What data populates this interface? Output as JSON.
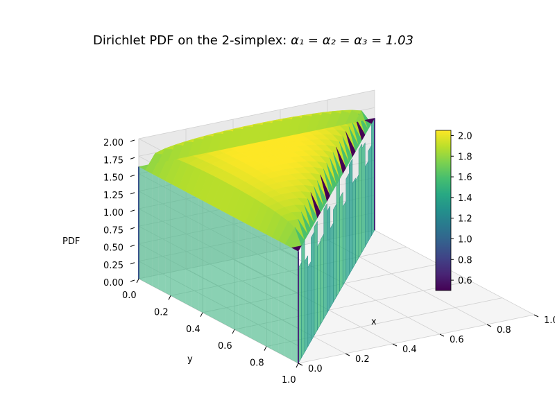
{
  "chart_data": {
    "type": "surface3d",
    "title": "Dirichlet PDF on the 2-simplex: α₁ = α₂ = α₃ = 1.03",
    "title_plain": "Dirichlet PDF on the 2-simplex: ",
    "title_math": "α₁ = α₂ = α₃ = 1.03",
    "alpha": [
      1.03,
      1.03,
      1.03
    ],
    "xlabel": "x",
    "ylabel": "y",
    "zlabel": "PDF",
    "xlim": [
      0.0,
      1.0
    ],
    "ylim": [
      0.0,
      1.0
    ],
    "zlim": [
      0.0,
      2.0
    ],
    "x_ticks": [
      "0.0",
      "0.2",
      "0.4",
      "0.6",
      "0.8",
      "1.0"
    ],
    "y_ticks": [
      "0.0",
      "0.2",
      "0.4",
      "0.6",
      "0.8",
      "1.0"
    ],
    "z_ticks": [
      "0.00",
      "0.25",
      "0.50",
      "0.75",
      "1.00",
      "1.25",
      "1.50",
      "1.75",
      "2.00"
    ],
    "colorbar": {
      "colormap": "viridis",
      "range": [
        0.5,
        2.05
      ],
      "ticks": [
        "0.6",
        "0.8",
        "1.0",
        "1.2",
        "1.4",
        "1.6",
        "1.8",
        "2.0"
      ]
    },
    "surface": {
      "peak_pdf": 2.07,
      "edge_pdf": 1.6,
      "corner_pdf": 0.55
    },
    "grid": true
  }
}
